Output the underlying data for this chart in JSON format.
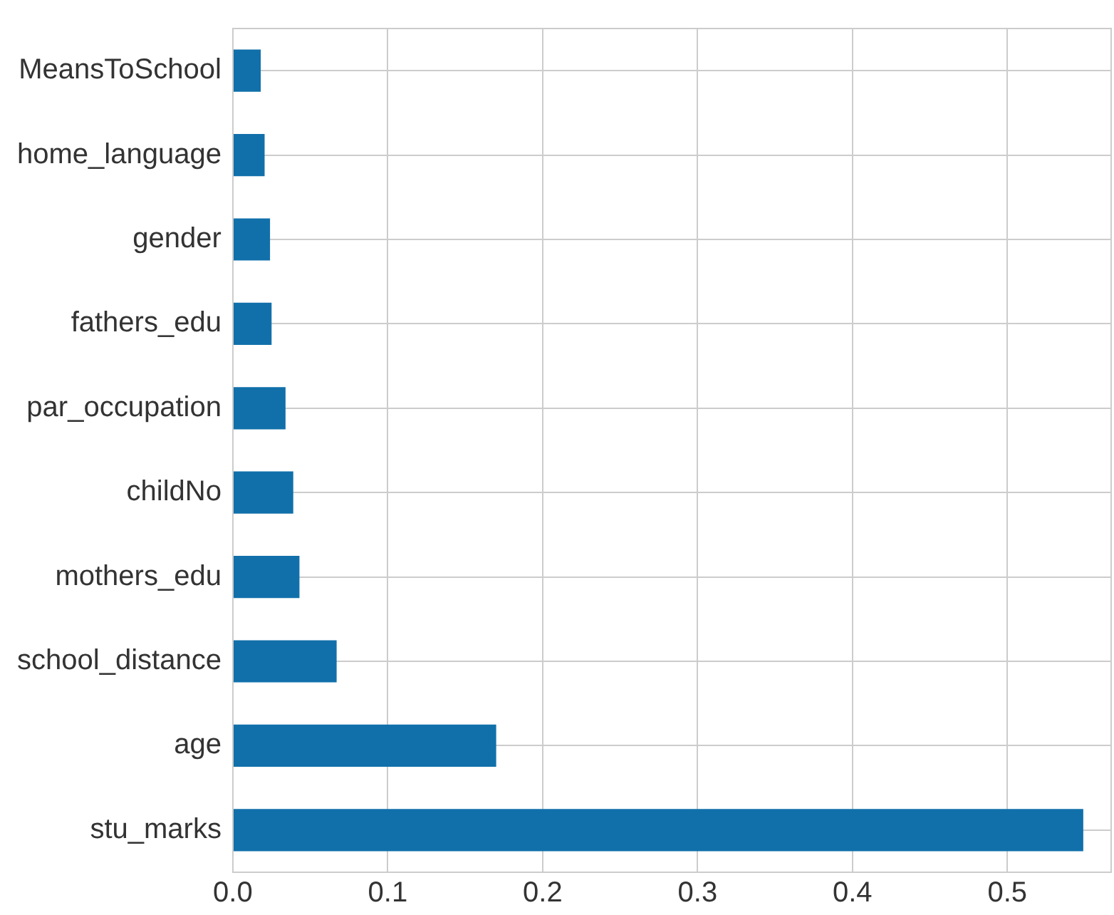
{
  "chart_data": {
    "type": "bar",
    "orientation": "horizontal",
    "categories": [
      "MeansToSchool",
      "home_language",
      "gender",
      "fathers_edu",
      "par_occupation",
      "childNo",
      "mothers_edu",
      "school_distance",
      "age",
      "stu_marks"
    ],
    "values": [
      0.018,
      0.0205,
      0.024,
      0.025,
      0.034,
      0.039,
      0.043,
      0.067,
      0.17,
      0.549
    ],
    "color": "#1170aa",
    "xlim": [
      0,
      0.567
    ],
    "xticks": [
      {
        "value": 0,
        "label": "0.0"
      },
      0.1,
      0.2,
      0.3,
      0.4,
      0.5
    ],
    "grid": true,
    "legend": false
  }
}
